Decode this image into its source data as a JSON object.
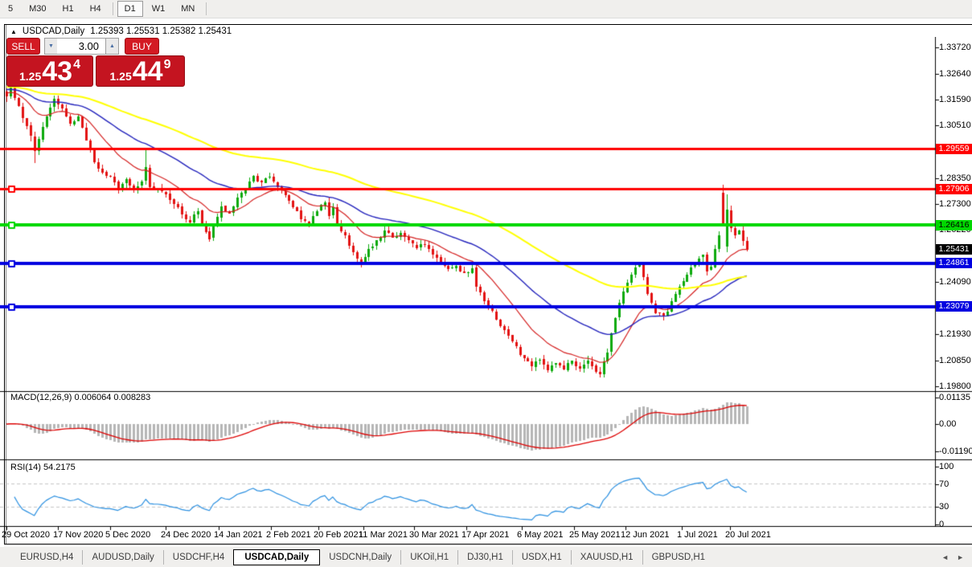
{
  "toolbar": {
    "timeframes": [
      {
        "label": "5",
        "active": false
      },
      {
        "label": "M30",
        "active": false
      },
      {
        "label": "H1",
        "active": false
      },
      {
        "label": "H4",
        "active": false
      },
      {
        "label": "D1",
        "active": true
      },
      {
        "label": "W1",
        "active": false
      },
      {
        "label": "MN",
        "active": false
      }
    ]
  },
  "chart_window": {
    "title_arrow": "▲",
    "title": "USDCAD,Daily",
    "quote": "1.25393 1.25531 1.25382 1.25431"
  },
  "trade_panel": {
    "sell_label": "SELL",
    "buy_label": "BUY",
    "volume": "3.00",
    "sell_price": {
      "prefix": "1.25",
      "big": "43",
      "sup": "4"
    },
    "buy_price": {
      "prefix": "1.25",
      "big": "44",
      "sup": "9"
    }
  },
  "icons": {
    "spin_down": "▼",
    "spin_up": "▲",
    "tab_left": "◄",
    "tab_right": "►"
  },
  "indicators": {
    "macd_label": "MACD(12,26,9) 0.006064 0.008283",
    "rsi_label": "RSI(14) 54.2175"
  },
  "chart_data": {
    "type": "candlestick",
    "symbol": "USDCAD",
    "period": "Daily",
    "current_quote": {
      "open": 1.25393,
      "high": 1.25531,
      "low": 1.25382,
      "close": 1.25431
    },
    "price_ticks": [
      1.3372,
      1.3264,
      1.3159,
      1.3051,
      1.2835,
      1.273,
      1.2622,
      1.2409,
      1.2193,
      1.2085,
      1.198
    ],
    "badges": [
      {
        "text": "1.29559",
        "price": 1.29559,
        "bg": "#ff0000",
        "fg": "#ffffff",
        "name": "resistance-1"
      },
      {
        "text": "1.27906",
        "price": 1.27906,
        "bg": "#ff0000",
        "fg": "#ffffff",
        "name": "resistance-2"
      },
      {
        "text": "1.26416",
        "price": 1.26416,
        "bg": "#00d800",
        "fg": "#000000",
        "name": "level-green"
      },
      {
        "text": "1.25431",
        "price": 1.25431,
        "bg": "#000000",
        "fg": "#ffffff",
        "name": "current-price"
      },
      {
        "text": "1.24861",
        "price": 1.24861,
        "bg": "#0000e0",
        "fg": "#ffffff",
        "name": "support-1"
      },
      {
        "text": "1.23079",
        "price": 1.23079,
        "bg": "#0000e0",
        "fg": "#ffffff",
        "name": "support-2"
      }
    ],
    "hlines": [
      {
        "price": 1.29559,
        "color": "#ff0000",
        "width": 3,
        "marker": false
      },
      {
        "price": 1.27906,
        "color": "#ff0000",
        "width": 3,
        "marker": true
      },
      {
        "price": 1.26416,
        "color": "#00d800",
        "width": 4,
        "marker": true
      },
      {
        "price": 1.24861,
        "color": "#0000e0",
        "width": 4,
        "marker": true
      },
      {
        "price": 1.23079,
        "color": "#0000e0",
        "width": 4,
        "marker": true
      }
    ],
    "dates": [
      "29 Oct 2020",
      "17 Nov 2020",
      "5 Dec 2020",
      "24 Dec 2020",
      "14 Jan 2021",
      "2 Feb 2021",
      "20 Feb 2021",
      "11 Mar 2021",
      "30 Mar 2021",
      "17 Apr 2021",
      "6 May 2021",
      "25 May 2021",
      "12 Jun 2021",
      "1 Jul 2021",
      "20 Jul 2021"
    ],
    "candles": {
      "count": 187,
      "close_anchors": [
        [
          0,
          1.317
        ],
        [
          1,
          1.322
        ],
        [
          3,
          1.313
        ],
        [
          5,
          1.305
        ],
        [
          7,
          1.2945
        ],
        [
          8,
          1.2995
        ],
        [
          10,
          1.309
        ],
        [
          12,
          1.316
        ],
        [
          14,
          1.312
        ],
        [
          16,
          1.306
        ],
        [
          18,
          1.309
        ],
        [
          20,
          1.299
        ],
        [
          22,
          1.29
        ],
        [
          24,
          1.286
        ],
        [
          26,
          1.284
        ],
        [
          28,
          1.279
        ],
        [
          30,
          1.283
        ],
        [
          32,
          1.279
        ],
        [
          34,
          1.282
        ],
        [
          35,
          1.288
        ],
        [
          36,
          1.28
        ],
        [
          38,
          1.279
        ],
        [
          40,
          1.277
        ],
        [
          42,
          1.273
        ],
        [
          44,
          1.2685
        ],
        [
          46,
          1.2655
        ],
        [
          48,
          1.27
        ],
        [
          50,
          1.2615
        ],
        [
          51,
          1.2585
        ],
        [
          52,
          1.2645
        ],
        [
          54,
          1.272
        ],
        [
          56,
          1.269
        ],
        [
          58,
          1.2755
        ],
        [
          60,
          1.279
        ],
        [
          62,
          1.2845
        ],
        [
          64,
          1.2815
        ],
        [
          66,
          1.284
        ],
        [
          68,
          1.28
        ],
        [
          70,
          1.2765
        ],
        [
          72,
          1.2715
        ],
        [
          74,
          1.2665
        ],
        [
          76,
          1.2645
        ],
        [
          78,
          1.27
        ],
        [
          80,
          1.2735
        ],
        [
          81,
          1.268
        ],
        [
          82,
          1.2715
        ],
        [
          83,
          1.265
        ],
        [
          85,
          1.26
        ],
        [
          87,
          1.253
        ],
        [
          89,
          1.248
        ],
        [
          91,
          1.2545
        ],
        [
          93,
          1.258
        ],
        [
          95,
          1.262
        ],
        [
          97,
          1.259
        ],
        [
          99,
          1.261
        ],
        [
          101,
          1.258
        ],
        [
          103,
          1.255
        ],
        [
          105,
          1.256
        ],
        [
          107,
          1.252
        ],
        [
          109,
          1.249
        ],
        [
          111,
          1.2465
        ],
        [
          113,
          1.2475
        ],
        [
          115,
          1.2445
        ],
        [
          117,
          1.2465
        ],
        [
          118,
          1.239
        ],
        [
          120,
          1.233
        ],
        [
          122,
          1.229
        ],
        [
          124,
          1.223
        ],
        [
          126,
          1.219
        ],
        [
          128,
          1.2145
        ],
        [
          130,
          1.2095
        ],
        [
          132,
          1.206
        ],
        [
          134,
          1.209
        ],
        [
          136,
          1.2045
        ],
        [
          138,
          1.2075
        ],
        [
          140,
          1.205
        ],
        [
          142,
          1.2085
        ],
        [
          144,
          1.2055
        ],
        [
          146,
          1.2085
        ],
        [
          148,
          1.204
        ],
        [
          149,
          1.203
        ],
        [
          151,
          1.212
        ],
        [
          153,
          1.226
        ],
        [
          155,
          1.237
        ],
        [
          157,
          1.244
        ],
        [
          159,
          1.248
        ],
        [
          161,
          1.236
        ],
        [
          163,
          1.228
        ],
        [
          165,
          1.2265
        ],
        [
          167,
          1.233
        ],
        [
          169,
          1.239
        ],
        [
          171,
          1.244
        ],
        [
          173,
          1.249
        ],
        [
          175,
          1.252
        ],
        [
          176,
          1.2455
        ],
        [
          177,
          1.247
        ],
        [
          178,
          1.2545
        ],
        [
          179,
          1.26
        ],
        [
          180,
          1.2648
        ],
        [
          181,
          1.27
        ],
        [
          182,
          1.263
        ],
        [
          183,
          1.26
        ],
        [
          184,
          1.262
        ],
        [
          185,
          1.2575
        ],
        [
          186,
          1.25431
        ]
      ],
      "overrides": {
        "7": {
          "l": 1.2898
        },
        "35": {
          "h": 1.295
        },
        "180": {
          "o": 1.2775,
          "h": 1.2808,
          "l": 1.2638,
          "c": 1.2648
        },
        "181": {
          "o": 1.2552,
          "h": 1.2768,
          "l": 1.253,
          "c": 1.2705
        }
      }
    },
    "moving_averages": [
      {
        "name": "ma-fast",
        "period": 16,
        "color": "#d42020",
        "width": 1.2,
        "init_offset": 0.0015
      },
      {
        "name": "ma-mid",
        "period": 42,
        "color": "#2424bc",
        "width": 1.4,
        "init_offset": 0.003
      },
      {
        "name": "ma-slow",
        "period": 95,
        "color": "#ffff00",
        "width": 2,
        "init_offset": 0.004
      }
    ],
    "macd": {
      "params": "12,26,9",
      "value": 0.006064,
      "signal": 0.008283,
      "axis": [
        {
          "text": "0.01135",
          "value": 0.01135
        },
        {
          "text": "0.00",
          "value": 0
        },
        {
          "text": "-0.01190",
          "value": -0.0119
        }
      ]
    },
    "rsi": {
      "period": 14,
      "value": 54.2175,
      "axis": [
        {
          "text": "100",
          "value": 100
        },
        {
          "text": "70",
          "value": 70
        },
        {
          "text": "30",
          "value": 30
        },
        {
          "text": "0",
          "value": 0
        }
      ],
      "levels": [
        70,
        30
      ]
    }
  },
  "colors": {
    "candle_up": "#0caa0c",
    "candle_down": "#e31212",
    "macd_hist": "#b6b6b6",
    "macd_signal": "#dd0000",
    "rsi_line": "#2a8fe0",
    "rsi_level": "#c4c4c4",
    "axis": "#000000"
  },
  "tabs": {
    "items": [
      {
        "label": "EURUSD,H4",
        "active": false
      },
      {
        "label": "AUDUSD,Daily",
        "active": false
      },
      {
        "label": "USDCHF,H4",
        "active": false
      },
      {
        "label": "USDCAD,Daily",
        "active": true
      },
      {
        "label": "USDCNH,Daily",
        "active": false
      },
      {
        "label": "UKOil,H1",
        "active": false
      },
      {
        "label": "DJ30,H1",
        "active": false
      },
      {
        "label": "USDX,H1",
        "active": false
      },
      {
        "label": "XAUUSD,H1",
        "active": false
      },
      {
        "label": "GBPUSD,H1",
        "active": false
      }
    ]
  }
}
